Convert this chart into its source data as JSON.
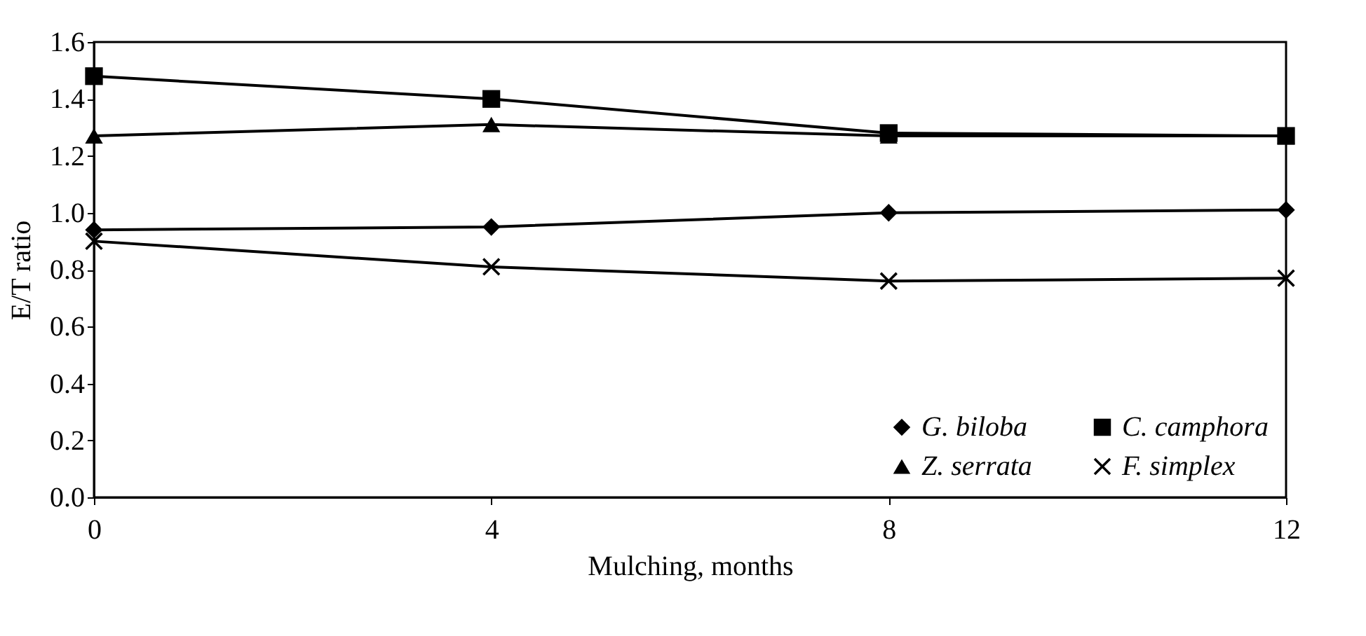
{
  "chart_data": {
    "type": "line",
    "xlabel": "Mulching, months",
    "ylabel": "E/T ratio",
    "x": [
      0,
      4,
      8,
      12
    ],
    "series": [
      {
        "name": "G. biloba",
        "color": "#000000",
        "marker": "diamond",
        "values": [
          0.94,
          0.95,
          1.0,
          1.01
        ]
      },
      {
        "name": "C. camphora",
        "color": "#000000",
        "marker": "square",
        "values": [
          1.48,
          1.4,
          1.28,
          1.27
        ]
      },
      {
        "name": "Z. serrata",
        "color": "#000000",
        "marker": "triangle",
        "values": [
          1.27,
          1.31,
          1.27,
          1.27
        ]
      },
      {
        "name": "F. simplex",
        "color": "#000000",
        "marker": "cross",
        "values": [
          0.9,
          0.81,
          0.76,
          0.77
        ]
      }
    ],
    "xlim": [
      0,
      12
    ],
    "xticks": [
      0,
      4,
      8,
      12
    ],
    "ylim": [
      0,
      1.6
    ],
    "yticks": [
      {
        "value": 0,
        "label": "0.0"
      },
      0.2,
      0.4,
      0.6,
      0.8,
      {
        "value": 1,
        "label": "1.0"
      },
      1.2,
      1.4,
      1.6
    ],
    "grid": false,
    "legend": "bottom right",
    "line_style": "solid"
  }
}
